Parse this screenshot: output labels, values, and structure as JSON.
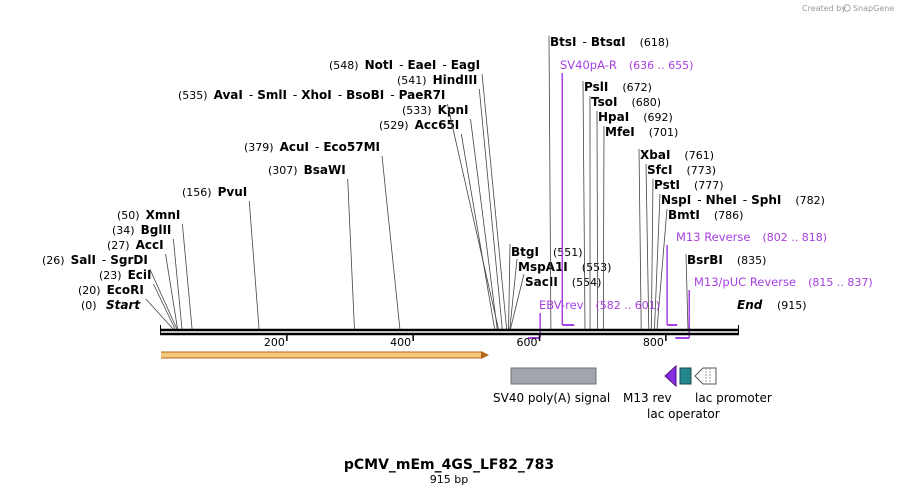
{
  "credit": "Created by",
  "brand": "SnapGene",
  "title": "pCMV_mEm_4GS_LF82_783",
  "subtitle": "915 bp",
  "sequence_length": 915,
  "ticks": [
    200,
    400,
    600,
    800
  ],
  "start_label": "Start",
  "start_pos": "(0)",
  "end_label": "End",
  "end_pos": "(915)",
  "sites": [
    {
      "pos": 20,
      "pos_text": "(20)",
      "names": [
        "EcoRI"
      ]
    },
    {
      "pos": 23,
      "pos_text": "(23)",
      "names": [
        "EciI"
      ]
    },
    {
      "pos": 26,
      "pos_text": "(26)",
      "names": [
        "SalI",
        "SgrDI"
      ]
    },
    {
      "pos": 27,
      "pos_text": "(27)",
      "names": [
        "AccI"
      ]
    },
    {
      "pos": 34,
      "pos_text": "(34)",
      "names": [
        "BglII"
      ]
    },
    {
      "pos": 50,
      "pos_text": "(50)",
      "names": [
        "XmnI"
      ]
    },
    {
      "pos": 156,
      "pos_text": "(156)",
      "names": [
        "PvuI"
      ]
    },
    {
      "pos": 307,
      "pos_text": "(307)",
      "names": [
        "BsaWI"
      ]
    },
    {
      "pos": 379,
      "pos_text": "(379)",
      "names": [
        "AcuI",
        "Eco57MI"
      ]
    },
    {
      "pos": 529,
      "pos_text": "(529)",
      "names": [
        "Acc65I"
      ]
    },
    {
      "pos": 533,
      "pos_text": "(533)",
      "names": [
        "KpnI"
      ]
    },
    {
      "pos": 535,
      "pos_text": "(535)",
      "names": [
        "AvaI",
        "SmlI",
        "XhoI",
        "BsoBI",
        "PaeR7I"
      ]
    },
    {
      "pos": 541,
      "pos_text": "(541)",
      "names": [
        "HindIII"
      ]
    },
    {
      "pos": 548,
      "pos_text": "(548)",
      "names": [
        "NotI",
        "EaeI",
        "EagI"
      ]
    },
    {
      "pos": 551,
      "pos_text": "(551)",
      "names": [
        "BtgI"
      ]
    },
    {
      "pos": 553,
      "pos_text": "(553)",
      "names": [
        "MspA1I"
      ]
    },
    {
      "pos": 554,
      "pos_text": "(554)",
      "names": [
        "SacII"
      ]
    },
    {
      "pos": 618,
      "pos_text": "(618)",
      "names": [
        "BtsI",
        "BtsαI"
      ]
    },
    {
      "pos": 672,
      "pos_text": "(672)",
      "names": [
        "PslI"
      ]
    },
    {
      "pos": 680,
      "pos_text": "(680)",
      "names": [
        "TsoI"
      ]
    },
    {
      "pos": 692,
      "pos_text": "(692)",
      "names": [
        "HpaI"
      ]
    },
    {
      "pos": 701,
      "pos_text": "(701)",
      "names": [
        "MfeI"
      ]
    },
    {
      "pos": 761,
      "pos_text": "(761)",
      "names": [
        "XbaI"
      ]
    },
    {
      "pos": 773,
      "pos_text": "(773)",
      "names": [
        "SfcI"
      ]
    },
    {
      "pos": 777,
      "pos_text": "(777)",
      "names": [
        "PstI"
      ]
    },
    {
      "pos": 782,
      "pos_text": "(782)",
      "names": [
        "NspI",
        "NheI",
        "SphI"
      ]
    },
    {
      "pos": 786,
      "pos_text": "(786)",
      "names": [
        "BmtI"
      ]
    },
    {
      "pos": 835,
      "pos_text": "(835)",
      "names": [
        "BsrBI"
      ]
    }
  ],
  "primers": [
    {
      "name": "SV40pA-R",
      "range": "(636 .. 655)",
      "start": 636,
      "end": 655
    },
    {
      "name": "EBV-rev",
      "range": "(582 .. 601)",
      "start": 582,
      "end": 601
    },
    {
      "name": "M13 Reverse",
      "range": "(802 .. 818)",
      "start": 802,
      "end": 818
    },
    {
      "name": "M13/pUC Reverse",
      "range": "(815 .. 837)",
      "start": 815,
      "end": 837
    }
  ],
  "features": [
    {
      "name": "SV40 poly(A) signal",
      "color": "#a3a6ae"
    },
    {
      "name": "M13 rev",
      "color": "#8a2be2"
    },
    {
      "name": "lac operator",
      "color": "#23868e"
    },
    {
      "name": "lac promoter",
      "color": "#ffffff"
    }
  ],
  "colors": {
    "orf_fill": "#f4c87a",
    "orf_edge": "#b5651d",
    "primer": "#a640e0",
    "backbone": "#000000"
  }
}
